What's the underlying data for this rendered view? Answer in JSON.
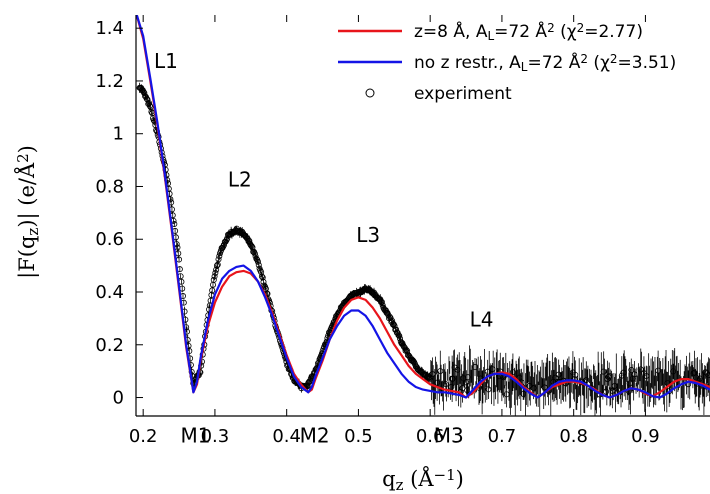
{
  "chart_data": {
    "type": "line",
    "title": "",
    "xlabel": {
      "main": "q",
      "sub": "z",
      "open": " (Å",
      "sup": "−1",
      "close": ")"
    },
    "ylabel": {
      "pre": "|F(q",
      "sub": "z",
      "mid": ")| (e/Å",
      "sup": "2",
      "post": ")"
    },
    "xlim": [
      0.19,
      0.99
    ],
    "ylim": [
      -0.07,
      1.45
    ],
    "x_ticks": [
      0.2,
      0.3,
      0.4,
      0.5,
      0.6,
      0.7,
      0.8,
      0.9
    ],
    "x_tick_labels": [
      "0.2",
      "0.3",
      "0.4",
      "0.5",
      "0.6",
      "0.7",
      "0.8",
      "0.9"
    ],
    "y_ticks": [
      0,
      0.2,
      0.4,
      0.6,
      0.8,
      1.0,
      1.2,
      1.4
    ],
    "y_tick_labels": [
      "0",
      "0.2",
      "0.4",
      "0.6",
      "0.8",
      "1",
      "1.2",
      "1.4"
    ],
    "legend_position": "top-right",
    "legend": [
      {
        "key": "red",
        "parts": [
          [
            "z=8 Å, A",
            ""
          ],
          [
            "L",
            "sub"
          ],
          [
            "=72 Å",
            ""
          ],
          [
            "2",
            "sup"
          ],
          [
            " (χ",
            ""
          ],
          [
            "2",
            "sup"
          ],
          [
            "=2.77)",
            ""
          ]
        ]
      },
      {
        "key": "blue",
        "parts": [
          [
            "no z restr., A",
            ""
          ],
          [
            "L",
            "sub"
          ],
          [
            "=72 Å",
            ""
          ],
          [
            "2",
            "sup"
          ],
          [
            " (χ",
            ""
          ],
          [
            "2",
            "sup"
          ],
          [
            "=3.51)",
            ""
          ]
        ]
      },
      {
        "key": "experiment",
        "parts": [
          [
            "experiment",
            ""
          ]
        ]
      }
    ],
    "annotations": [
      {
        "text": "L1",
        "x": 0.215,
        "y": 1.25
      },
      {
        "text": "L2",
        "x": 0.318,
        "y": 0.8
      },
      {
        "text": "L3",
        "x": 0.497,
        "y": 0.59
      },
      {
        "text": "L4",
        "x": 0.655,
        "y": 0.27
      },
      {
        "text": "M1",
        "x": 0.252,
        "y": -0.17
      },
      {
        "text": "M2",
        "x": 0.418,
        "y": -0.17
      },
      {
        "text": "M3",
        "x": 0.605,
        "y": -0.17
      }
    ],
    "series": [
      {
        "key": "red",
        "color": "#e8151b",
        "points": [
          [
            0.19,
            1.46
          ],
          [
            0.2,
            1.36
          ],
          [
            0.21,
            1.2
          ],
          [
            0.22,
            1.03
          ],
          [
            0.23,
            0.84
          ],
          [
            0.24,
            0.63
          ],
          [
            0.25,
            0.41
          ],
          [
            0.26,
            0.19
          ],
          [
            0.27,
            0.02
          ],
          [
            0.275,
            0.05
          ],
          [
            0.28,
            0.14
          ],
          [
            0.29,
            0.27
          ],
          [
            0.3,
            0.36
          ],
          [
            0.31,
            0.42
          ],
          [
            0.32,
            0.46
          ],
          [
            0.33,
            0.475
          ],
          [
            0.34,
            0.48
          ],
          [
            0.35,
            0.47
          ],
          [
            0.36,
            0.44
          ],
          [
            0.37,
            0.39
          ],
          [
            0.38,
            0.32
          ],
          [
            0.39,
            0.24
          ],
          [
            0.4,
            0.16
          ],
          [
            0.41,
            0.09
          ],
          [
            0.42,
            0.05
          ],
          [
            0.43,
            0.02
          ],
          [
            0.435,
            0.03
          ],
          [
            0.44,
            0.07
          ],
          [
            0.45,
            0.14
          ],
          [
            0.46,
            0.22
          ],
          [
            0.47,
            0.29
          ],
          [
            0.48,
            0.34
          ],
          [
            0.49,
            0.37
          ],
          [
            0.5,
            0.38
          ],
          [
            0.51,
            0.37
          ],
          [
            0.52,
            0.34
          ],
          [
            0.53,
            0.3
          ],
          [
            0.54,
            0.25
          ],
          [
            0.55,
            0.2
          ],
          [
            0.56,
            0.16
          ],
          [
            0.57,
            0.12
          ],
          [
            0.58,
            0.09
          ],
          [
            0.59,
            0.07
          ],
          [
            0.6,
            0.05
          ],
          [
            0.61,
            0.04
          ],
          [
            0.62,
            0.03
          ],
          [
            0.63,
            0.025
          ],
          [
            0.64,
            0.02
          ],
          [
            0.65,
            0.0
          ],
          [
            0.66,
            0.02
          ],
          [
            0.67,
            0.05
          ],
          [
            0.68,
            0.08
          ],
          [
            0.69,
            0.09
          ],
          [
            0.7,
            0.095
          ],
          [
            0.71,
            0.09
          ],
          [
            0.72,
            0.07
          ],
          [
            0.73,
            0.04
          ],
          [
            0.74,
            0.02
          ],
          [
            0.75,
            0.0
          ],
          [
            0.76,
            0.02
          ],
          [
            0.77,
            0.04
          ],
          [
            0.78,
            0.05
          ],
          [
            0.79,
            0.06
          ],
          [
            0.8,
            0.06
          ],
          [
            0.81,
            0.055
          ],
          [
            0.82,
            0.045
          ],
          [
            0.83,
            0.03
          ],
          [
            0.84,
            0.01
          ],
          [
            0.85,
            0.0
          ],
          [
            0.86,
            0.01
          ],
          [
            0.87,
            0.025
          ],
          [
            0.88,
            0.035
          ],
          [
            0.89,
            0.03
          ],
          [
            0.9,
            0.015
          ],
          [
            0.91,
            0.005
          ],
          [
            0.92,
            0.02
          ],
          [
            0.93,
            0.04
          ],
          [
            0.94,
            0.06
          ],
          [
            0.95,
            0.07
          ],
          [
            0.96,
            0.07
          ],
          [
            0.97,
            0.06
          ],
          [
            0.98,
            0.05
          ],
          [
            0.99,
            0.04
          ]
        ]
      },
      {
        "key": "blue",
        "color": "#1414e6",
        "points": [
          [
            0.19,
            1.46
          ],
          [
            0.2,
            1.37
          ],
          [
            0.21,
            1.21
          ],
          [
            0.22,
            1.04
          ],
          [
            0.23,
            0.85
          ],
          [
            0.24,
            0.64
          ],
          [
            0.25,
            0.42
          ],
          [
            0.26,
            0.2
          ],
          [
            0.27,
            0.02
          ],
          [
            0.275,
            0.06
          ],
          [
            0.28,
            0.15
          ],
          [
            0.29,
            0.29
          ],
          [
            0.3,
            0.39
          ],
          [
            0.31,
            0.45
          ],
          [
            0.32,
            0.48
          ],
          [
            0.33,
            0.495
          ],
          [
            0.34,
            0.5
          ],
          [
            0.35,
            0.48
          ],
          [
            0.36,
            0.44
          ],
          [
            0.37,
            0.38
          ],
          [
            0.38,
            0.31
          ],
          [
            0.39,
            0.23
          ],
          [
            0.4,
            0.15
          ],
          [
            0.41,
            0.08
          ],
          [
            0.42,
            0.04
          ],
          [
            0.43,
            0.02
          ],
          [
            0.435,
            0.04
          ],
          [
            0.44,
            0.08
          ],
          [
            0.45,
            0.15
          ],
          [
            0.46,
            0.22
          ],
          [
            0.47,
            0.27
          ],
          [
            0.48,
            0.31
          ],
          [
            0.49,
            0.33
          ],
          [
            0.5,
            0.33
          ],
          [
            0.51,
            0.31
          ],
          [
            0.52,
            0.27
          ],
          [
            0.53,
            0.22
          ],
          [
            0.54,
            0.17
          ],
          [
            0.55,
            0.13
          ],
          [
            0.56,
            0.09
          ],
          [
            0.57,
            0.06
          ],
          [
            0.58,
            0.04
          ],
          [
            0.59,
            0.03
          ],
          [
            0.6,
            0.025
          ],
          [
            0.61,
            0.02
          ],
          [
            0.62,
            0.02
          ],
          [
            0.63,
            0.015
          ],
          [
            0.64,
            0.01
          ],
          [
            0.65,
            0.0
          ],
          [
            0.66,
            0.03
          ],
          [
            0.67,
            0.06
          ],
          [
            0.68,
            0.08
          ],
          [
            0.69,
            0.09
          ],
          [
            0.7,
            0.09
          ],
          [
            0.71,
            0.08
          ],
          [
            0.72,
            0.06
          ],
          [
            0.73,
            0.035
          ],
          [
            0.74,
            0.015
          ],
          [
            0.75,
            0.0
          ],
          [
            0.76,
            0.02
          ],
          [
            0.77,
            0.045
          ],
          [
            0.78,
            0.06
          ],
          [
            0.79,
            0.065
          ],
          [
            0.8,
            0.065
          ],
          [
            0.81,
            0.06
          ],
          [
            0.82,
            0.045
          ],
          [
            0.83,
            0.025
          ],
          [
            0.84,
            0.01
          ],
          [
            0.85,
            0.0
          ],
          [
            0.86,
            0.01
          ],
          [
            0.87,
            0.025
          ],
          [
            0.88,
            0.035
          ],
          [
            0.89,
            0.03
          ],
          [
            0.9,
            0.02
          ],
          [
            0.91,
            0.005
          ],
          [
            0.92,
            0.0
          ],
          [
            0.93,
            0.015
          ],
          [
            0.94,
            0.035
          ],
          [
            0.95,
            0.05
          ],
          [
            0.96,
            0.06
          ],
          [
            0.97,
            0.055
          ],
          [
            0.98,
            0.045
          ],
          [
            0.99,
            0.03
          ]
        ]
      },
      {
        "key": "experiment",
        "color": "#000000",
        "marker": "open-circle",
        "profile": [
          [
            0.195,
            1.18
          ],
          [
            0.2,
            1.16
          ],
          [
            0.21,
            1.1
          ],
          [
            0.22,
            1.0
          ],
          [
            0.23,
            0.88
          ],
          [
            0.24,
            0.72
          ],
          [
            0.25,
            0.52
          ],
          [
            0.26,
            0.27
          ],
          [
            0.27,
            0.05
          ],
          [
            0.28,
            0.1
          ],
          [
            0.29,
            0.3
          ],
          [
            0.3,
            0.47
          ],
          [
            0.31,
            0.57
          ],
          [
            0.32,
            0.62
          ],
          [
            0.33,
            0.635
          ],
          [
            0.34,
            0.62
          ],
          [
            0.35,
            0.58
          ],
          [
            0.36,
            0.51
          ],
          [
            0.37,
            0.42
          ],
          [
            0.38,
            0.32
          ],
          [
            0.39,
            0.22
          ],
          [
            0.4,
            0.13
          ],
          [
            0.41,
            0.07
          ],
          [
            0.42,
            0.04
          ],
          [
            0.43,
            0.05
          ],
          [
            0.44,
            0.1
          ],
          [
            0.45,
            0.17
          ],
          [
            0.46,
            0.25
          ],
          [
            0.47,
            0.31
          ],
          [
            0.48,
            0.36
          ],
          [
            0.49,
            0.385
          ],
          [
            0.5,
            0.395
          ],
          [
            0.51,
            0.41
          ],
          [
            0.52,
            0.4
          ],
          [
            0.53,
            0.37
          ],
          [
            0.54,
            0.32
          ],
          [
            0.55,
            0.27
          ],
          [
            0.56,
            0.21
          ],
          [
            0.57,
            0.16
          ],
          [
            0.58,
            0.12
          ],
          [
            0.59,
            0.09
          ],
          [
            0.6,
            0.07
          ],
          [
            0.62,
            0.07
          ],
          [
            0.65,
            0.07
          ],
          [
            0.7,
            0.06
          ],
          [
            0.75,
            0.05
          ],
          [
            0.8,
            0.05
          ],
          [
            0.85,
            0.05
          ],
          [
            0.9,
            0.06
          ],
          [
            0.95,
            0.06
          ],
          [
            0.99,
            0.06
          ]
        ]
      }
    ]
  }
}
